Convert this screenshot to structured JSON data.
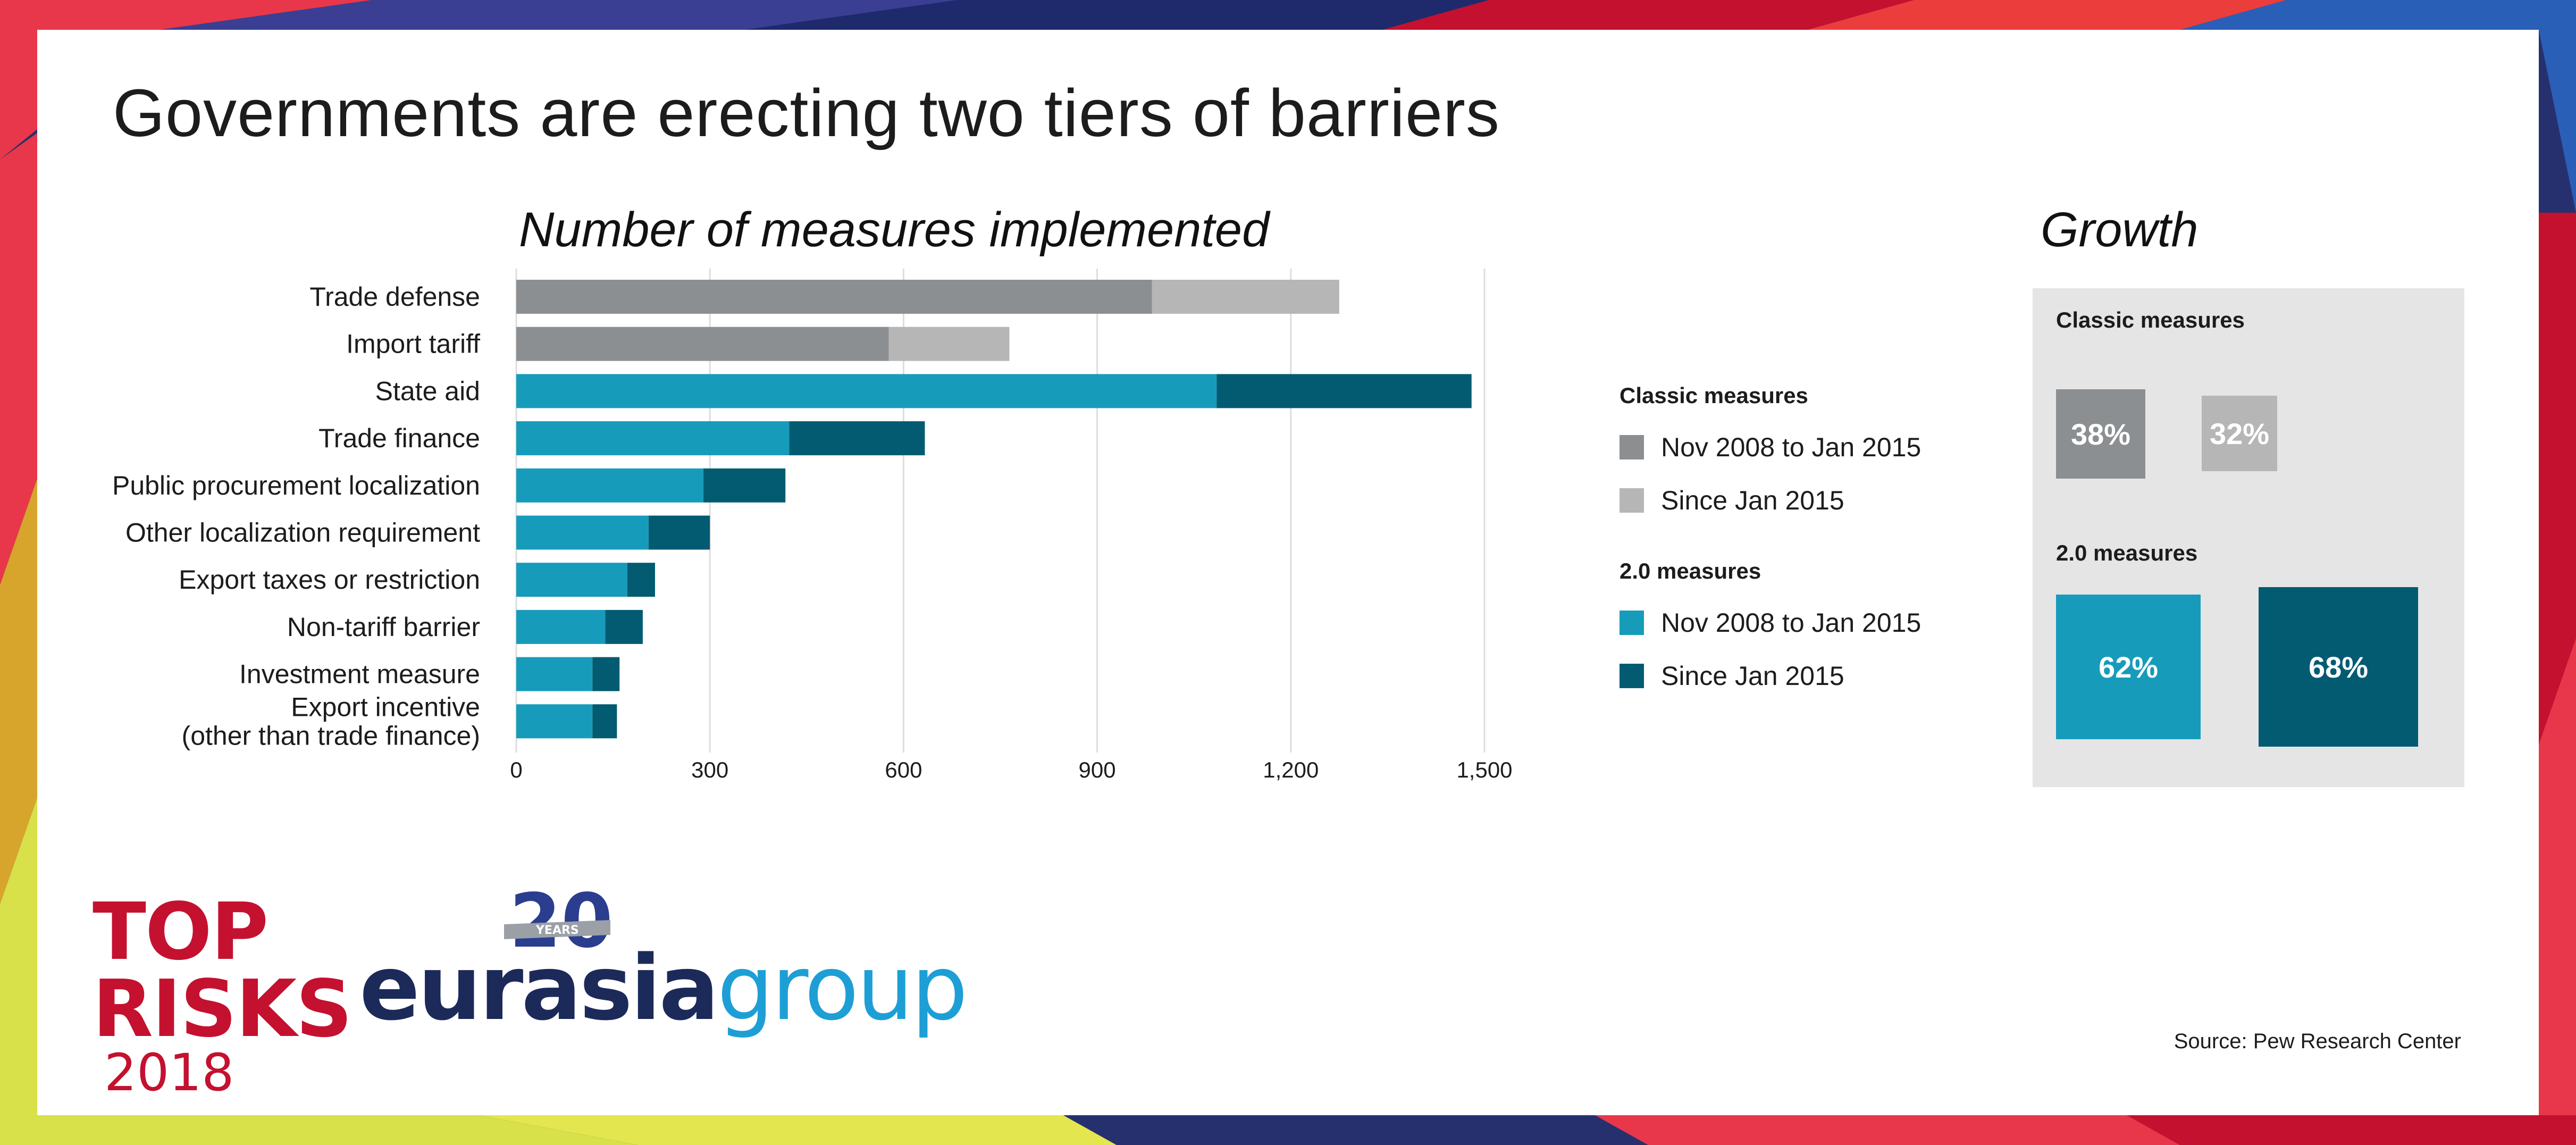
{
  "title": "Governments are erecting two tiers of barriers",
  "subtitle": "Number of measures implemented",
  "colors": {
    "classic_early": "#8c8f91",
    "classic_late": "#b6b6b6",
    "new_early": "#179bbb",
    "new_late": "#035b72",
    "grid": "#dddddd",
    "text": "#1c1c1c"
  },
  "chart_data": {
    "type": "bar",
    "orientation": "horizontal",
    "stacked": true,
    "title": "Number of measures implemented",
    "xlabel": "",
    "ylabel": "",
    "xlim": [
      0,
      1500
    ],
    "xticks": [
      0,
      300,
      600,
      900,
      1200,
      1500
    ],
    "xtick_labels": [
      "0",
      "300",
      "600",
      "900",
      "1,200",
      "1,500"
    ],
    "grid": "vertical",
    "categories": [
      "Trade defense",
      "Import tariff",
      "State aid",
      "Trade finance",
      "Public procurement localization",
      "Other localization requirement",
      "Export taxes or restriction",
      "Non-tariff barrier",
      "Investment measure",
      "Export incentive\n(other than trade finance)"
    ],
    "group": [
      "classic",
      "classic",
      "2.0",
      "2.0",
      "2.0",
      "2.0",
      "2.0",
      "2.0",
      "2.0",
      "2.0"
    ],
    "series": [
      {
        "name": "Nov 2008 to Jan 2015",
        "values": [
          985,
          577,
          1085,
          423,
          290,
          205,
          172,
          138,
          118,
          118
        ]
      },
      {
        "name": "Since Jan 2015",
        "values": [
          290,
          187,
          395,
          210,
          127,
          95,
          43,
          58,
          42,
          38
        ]
      }
    ]
  },
  "legend": {
    "classic_title": "Classic measures",
    "classic_items": [
      "Nov 2008 to Jan 2015",
      "Since Jan 2015"
    ],
    "new_title": "2.0 measures",
    "new_items": [
      "Nov 2008 to Jan 2015",
      "Since Jan 2015"
    ]
  },
  "growth": {
    "title": "Growth",
    "classic_label": "Classic measures",
    "classic_values": [
      "38%",
      "32%"
    ],
    "new_label": "2.0 measures",
    "new_values": [
      "62%",
      "68%"
    ]
  },
  "source": "Source: Pew Research Center",
  "logos": {
    "top_risks_line1": "TOP",
    "top_risks_line2": "RISKS",
    "top_risks_year": "2018",
    "brand_part1": "eurasia",
    "brand_part2": "group",
    "anniversary": "20",
    "anniversary_word": "YEARS"
  }
}
